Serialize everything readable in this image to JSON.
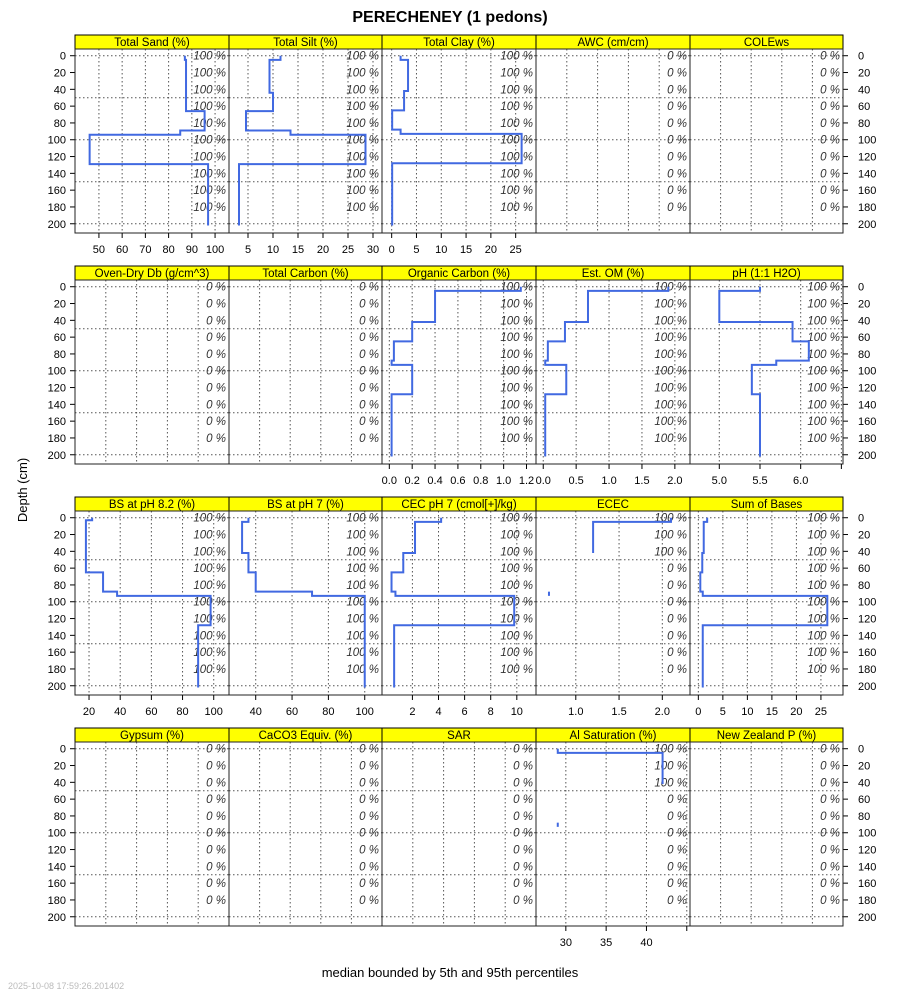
{
  "title": "PERECHENEY (1 pedons)",
  "xlabel": "median bounded by 5th and 95th percentiles",
  "ylabel": "Depth (cm)",
  "timestamp": "2025-10-08 17:59:26.201402",
  "colors": {
    "line": "#4169E1",
    "strip": "#FFFF00",
    "grid": "#555555"
  },
  "chart_data": {
    "type": "line",
    "layout": "4 rows x 5 columns",
    "ylabel": "Depth (cm)",
    "xlabel": "median bounded by 5th and 95th percentiles",
    "depth_range": [
      -8,
      211
    ],
    "depth_ticks": [
      0,
      20,
      40,
      60,
      80,
      100,
      120,
      140,
      160,
      180,
      200
    ],
    "depth_tick_labels": [
      "0",
      "20",
      "40",
      "60",
      "80",
      "100",
      "120",
      "140",
      "160",
      "180",
      "200"
    ],
    "depth_grid": [
      0,
      50,
      100,
      150,
      200
    ],
    "pct_depths": [
      0,
      20,
      40,
      60,
      80,
      100,
      120,
      140,
      160,
      180
    ],
    "panels": [
      {
        "title": "Total Sand (%)",
        "xlim": [
          39.7,
          106
        ],
        "show_axis": true,
        "ticks": [
          50,
          60,
          70,
          80,
          90,
          100
        ],
        "tick_labels": [
          "50",
          "60",
          "70",
          "80",
          "90",
          "100"
        ],
        "segments": [
          [
            [
              0,
              5,
              87
            ],
            [
              5,
              66,
              87.5
            ],
            [
              66,
              89,
              95.5
            ],
            [
              89,
              94,
              85
            ],
            [
              94,
              129,
              46
            ],
            [
              129,
              202,
              97
            ]
          ]
        ],
        "pct": [
          "100 %",
          "100 %",
          "100 %",
          "100 %",
          "100 %",
          "100 %",
          "100 %",
          "100 %",
          "100 %",
          "100 %"
        ]
      },
      {
        "title": "Total Silt (%)",
        "xlim": [
          1.2,
          31.8
        ],
        "show_axis": true,
        "ticks": [
          5,
          10,
          15,
          20,
          25,
          30
        ],
        "tick_labels": [
          "5",
          "10",
          "15",
          "20",
          "25",
          "30"
        ],
        "segments": [
          [
            [
              0,
              5,
              11.5
            ],
            [
              5,
              44,
              9.3
            ],
            [
              44,
              66,
              10
            ],
            [
              66,
              89,
              4.6
            ],
            [
              89,
              94,
              13.5
            ],
            [
              94,
              129,
              28.5
            ],
            [
              129,
              202,
              3.2
            ]
          ]
        ],
        "pct": [
          "100 %",
          "100 %",
          "100 %",
          "100 %",
          "100 %",
          "100 %",
          "100 %",
          "100 %",
          "100 %",
          "100 %"
        ]
      },
      {
        "title": "Total Clay (%)",
        "xlim": [
          -1.95,
          29.1
        ],
        "show_axis": true,
        "ticks": [
          0,
          5,
          10,
          15,
          20,
          25
        ],
        "tick_labels": [
          "0",
          "5",
          "10",
          "15",
          "20",
          "25"
        ],
        "segments": [
          [
            [
              0,
              5,
              1.8
            ],
            [
              5,
              42,
              3.3
            ],
            [
              42,
              65,
              2.5
            ],
            [
              65,
              88,
              0.1
            ],
            [
              88,
              93,
              1.8
            ],
            [
              93,
              128,
              26.2
            ],
            [
              128,
              202,
              0.1
            ]
          ]
        ],
        "pct": [
          "100 %",
          "100 %",
          "100 %",
          "100 %",
          "100 %",
          "100 %",
          "100 %",
          "100 %",
          "100 %",
          "100 %"
        ]
      },
      {
        "title": "AWC (cm/cm)",
        "xlim": [
          0,
          1
        ],
        "show_axis": false,
        "ticks": [
          0.2,
          0.4,
          0.6,
          0.8
        ],
        "tick_labels": [],
        "segments": [],
        "pct": [
          "0 %",
          "0 %",
          "0 %",
          "0 %",
          "0 %",
          "0 %",
          "0 %",
          "0 %",
          "0 %",
          "0 %"
        ]
      },
      {
        "title": "COLEws",
        "xlim": [
          0,
          1
        ],
        "show_axis": false,
        "ticks": [
          0.2,
          0.4,
          0.6,
          0.8
        ],
        "tick_labels": [],
        "segments": [],
        "pct": [
          "0 %",
          "0 %",
          "0 %",
          "0 %",
          "0 %",
          "0 %",
          "0 %",
          "0 %",
          "0 %",
          "0 %"
        ]
      },
      {
        "title": "Oven-Dry Db (g/cm^3)",
        "xlim": [
          0,
          1
        ],
        "show_axis": false,
        "ticks": [
          0.2,
          0.4,
          0.6,
          0.8
        ],
        "tick_labels": [],
        "segments": [],
        "pct": [
          "0 %",
          "0 %",
          "0 %",
          "0 %",
          "0 %",
          "0 %",
          "0 %",
          "0 %",
          "0 %",
          "0 %"
        ]
      },
      {
        "title": "Total Carbon (%)",
        "xlim": [
          0,
          1
        ],
        "show_axis": false,
        "ticks": [
          0.2,
          0.4,
          0.6,
          0.8
        ],
        "tick_labels": [],
        "segments": [],
        "pct": [
          "0 %",
          "0 %",
          "0 %",
          "0 %",
          "0 %",
          "0 %",
          "0 %",
          "0 %",
          "0 %",
          "0 %"
        ]
      },
      {
        "title": "Organic Carbon (%)",
        "xlim": [
          -0.064,
          1.283
        ],
        "show_axis": true,
        "ticks": [
          0,
          0.2,
          0.4,
          0.6,
          0.8,
          1.0,
          1.2
        ],
        "tick_labels": [
          "0.0",
          "0.2",
          "0.4",
          "0.6",
          "0.8",
          "1.0",
          "1.2"
        ],
        "segments": [
          [
            [
              0,
              5,
              1.15
            ],
            [
              5,
              42,
              0.4
            ],
            [
              42,
              65,
              0.2
            ],
            [
              65,
              88,
              0.04
            ],
            [
              88,
              93,
              0.02
            ],
            [
              93,
              128,
              0.2
            ],
            [
              128,
              202,
              0.02
            ]
          ]
        ],
        "pct": [
          "100 %",
          "100 %",
          "100 %",
          "100 %",
          "100 %",
          "100 %",
          "100 %",
          "100 %",
          "100 %",
          "100 %"
        ]
      },
      {
        "title": "Est. OM (%)",
        "xlim": [
          -0.11,
          2.23
        ],
        "show_axis": true,
        "ticks": [
          0,
          0.5,
          1.0,
          1.5,
          2.0
        ],
        "tick_labels": [
          "0.0",
          "0.5",
          "1.0",
          "1.5",
          "2.0"
        ],
        "segments": [
          [
            [
              0,
              5,
              1.9
            ],
            [
              5,
              42,
              0.68
            ],
            [
              42,
              65,
              0.33
            ],
            [
              65,
              88,
              0.07
            ],
            [
              88,
              93,
              0.03
            ],
            [
              93,
              128,
              0.35
            ],
            [
              128,
              202,
              0.03
            ]
          ]
        ],
        "pct": [
          "100 %",
          "100 %",
          "100 %",
          "100 %",
          "100 %",
          "100 %",
          "100 %",
          "100 %",
          "100 %",
          "100 %"
        ]
      },
      {
        "title": "pH (1:1 H2O)",
        "xlim": [
          4.64,
          6.52
        ],
        "show_axis": true,
        "ticks": [
          5.0,
          5.5,
          6.0,
          6.5
        ],
        "tick_labels": [
          "5.0",
          "5.5",
          "6.0",
          ""
        ],
        "segments": [
          [
            [
              0,
              5,
              5.5
            ],
            [
              5,
              42,
              5.0
            ],
            [
              42,
              65,
              5.9
            ],
            [
              65,
              88,
              6.1
            ],
            [
              88,
              93,
              5.7
            ],
            [
              93,
              128,
              5.4
            ],
            [
              128,
              202,
              5.5
            ]
          ]
        ],
        "pct": [
          "100 %",
          "100 %",
          "100 %",
          "100 %",
          "100 %",
          "100 %",
          "100 %",
          "100 %",
          "100 %",
          "100 %"
        ]
      },
      {
        "title": "BS at pH 8.2 (%)",
        "xlim": [
          11,
          109.8
        ],
        "show_axis": true,
        "ticks": [
          20,
          40,
          60,
          80,
          100
        ],
        "tick_labels": [
          "20",
          "40",
          "60",
          "80",
          "100"
        ],
        "segments": [
          [
            [
              0,
              3,
              22
            ],
            [
              3,
              65,
              18
            ],
            [
              65,
              88,
              29
            ],
            [
              88,
              93,
              38
            ],
            [
              93,
              128,
              98
            ],
            [
              128,
              202,
              90
            ]
          ]
        ],
        "pct": [
          "100 %",
          "100 %",
          "100 %",
          "100 %",
          "100 %",
          "100 %",
          "100 %",
          "100 %",
          "100 %",
          "100 %"
        ]
      },
      {
        "title": "BS at pH 7 (%)",
        "xlim": [
          25.3,
          109.5
        ],
        "show_axis": true,
        "ticks": [
          40,
          60,
          80,
          100
        ],
        "tick_labels": [
          "40",
          "60",
          "80",
          "100"
        ],
        "segments": [
          [
            [
              0,
              5,
              36
            ],
            [
              5,
              42,
              32.5
            ],
            [
              42,
              65,
              36
            ],
            [
              65,
              88,
              40
            ],
            [
              88,
              93,
              71
            ],
            [
              93,
              202,
              100
            ]
          ]
        ],
        "pct": [
          "100 %",
          "100 %",
          "100 %",
          "100 %",
          "100 %",
          "100 %",
          "100 %",
          "100 %",
          "100 %",
          "100 %"
        ]
      },
      {
        "title": "CEC pH 7 (cmol[+]/kg)",
        "xlim": [
          -0.33,
          11.47
        ],
        "show_axis": true,
        "ticks": [
          2,
          4,
          6,
          8,
          10
        ],
        "tick_labels": [
          "2",
          "4",
          "6",
          "8",
          "10"
        ],
        "segments": [
          [
            [
              0,
              5,
              4.2
            ],
            [
              5,
              42,
              2.2
            ],
            [
              42,
              65,
              1.3
            ],
            [
              65,
              88,
              0.4
            ],
            [
              88,
              93,
              0.7
            ],
            [
              93,
              128,
              9.8
            ],
            [
              128,
              202,
              0.6
            ]
          ]
        ],
        "pct": [
          "100 %",
          "100 %",
          "100 %",
          "100 %",
          "100 %",
          "100 %",
          "100 %",
          "100 %",
          "100 %",
          "100 %"
        ]
      },
      {
        "title": "ECEC",
        "xlim": [
          0.54,
          2.32
        ],
        "show_axis": true,
        "ticks": [
          1.0,
          1.5,
          2.0
        ],
        "tick_labels": [
          "1.0",
          "1.5",
          "2.0"
        ],
        "segments": [
          [
            [
              0,
              5,
              2.1
            ],
            [
              5,
              42,
              1.2
            ]
          ],
          [
            [
              88,
              93,
              0.69
            ]
          ]
        ],
        "pct": [
          "100 %",
          "100 %",
          "100 %",
          "0 %",
          "0 %",
          "0 %",
          "0 %",
          "0 %",
          "0 %",
          "0 %"
        ]
      },
      {
        "title": "Sum of Bases",
        "xlim": [
          -1.7,
          29.5
        ],
        "show_axis": true,
        "ticks": [
          0,
          5,
          10,
          15,
          20,
          25
        ],
        "tick_labels": [
          "0",
          "5",
          "10",
          "15",
          "20",
          "25"
        ],
        "segments": [
          [
            [
              0,
              5,
              1.8
            ],
            [
              5,
              42,
              1.1
            ],
            [
              42,
              65,
              0.8
            ],
            [
              65,
              88,
              0.4
            ],
            [
              88,
              93,
              0.9
            ],
            [
              93,
              128,
              26.3
            ],
            [
              128,
              202,
              0.9
            ]
          ]
        ],
        "pct": [
          "100 %",
          "100 %",
          "100 %",
          "100 %",
          "100 %",
          "100 %",
          "100 %",
          "100 %",
          "100 %",
          "100 %"
        ]
      },
      {
        "title": "Gypsum (%)",
        "xlim": [
          0,
          1
        ],
        "show_axis": false,
        "ticks": [
          0.2,
          0.4,
          0.6,
          0.8
        ],
        "tick_labels": [],
        "segments": [],
        "pct": [
          "0 %",
          "0 %",
          "0 %",
          "0 %",
          "0 %",
          "0 %",
          "0 %",
          "0 %",
          "0 %",
          "0 %"
        ]
      },
      {
        "title": "CaCO3 Equiv. (%)",
        "xlim": [
          0,
          1
        ],
        "show_axis": false,
        "ticks": [
          0.2,
          0.4,
          0.6,
          0.8
        ],
        "tick_labels": [],
        "segments": [],
        "pct": [
          "0 %",
          "0 %",
          "0 %",
          "0 %",
          "0 %",
          "0 %",
          "0 %",
          "0 %",
          "0 %",
          "0 %"
        ]
      },
      {
        "title": "SAR",
        "xlim": [
          0,
          1
        ],
        "show_axis": false,
        "ticks": [
          0.2,
          0.4,
          0.6,
          0.8
        ],
        "tick_labels": [],
        "segments": [],
        "pct": [
          "0 %",
          "0 %",
          "0 %",
          "0 %",
          "0 %",
          "0 %",
          "0 %",
          "0 %",
          "0 %",
          "0 %"
        ]
      },
      {
        "title": "Al Saturation (%)",
        "xlim": [
          26.3,
          45.4
        ],
        "show_axis": true,
        "ticks": [
          30,
          35,
          40,
          45
        ],
        "tick_labels": [
          "30",
          "35",
          "40",
          ""
        ],
        "segments": [
          [
            [
              0,
              5,
              29
            ],
            [
              5,
              42,
              42
            ]
          ],
          [
            [
              88,
              93,
              29
            ]
          ]
        ],
        "pct": [
          "100 %",
          "100 %",
          "100 %",
          "0 %",
          "0 %",
          "0 %",
          "0 %",
          "0 %",
          "0 %",
          "0 %"
        ]
      },
      {
        "title": "New Zealand P (%)",
        "xlim": [
          0,
          1
        ],
        "show_axis": false,
        "ticks": [
          0.2,
          0.4,
          0.6,
          0.8
        ],
        "tick_labels": [],
        "segments": [],
        "pct": [
          "0 %",
          "0 %",
          "0 %",
          "0 %",
          "0 %",
          "0 %",
          "0 %",
          "0 %",
          "0 %",
          "0 %"
        ]
      }
    ]
  }
}
